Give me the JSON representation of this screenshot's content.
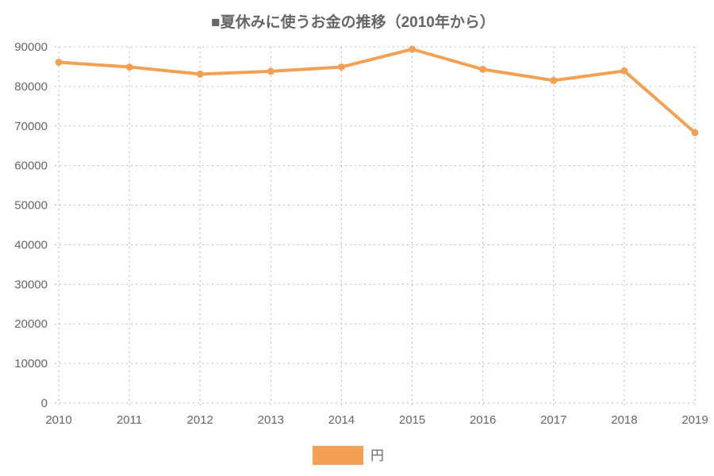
{
  "chart_data": {
    "type": "line",
    "title": "■夏休みに使うお金の推移（2010年から）",
    "xlabel": "",
    "ylabel": "",
    "categories": [
      "2010",
      "2011",
      "2012",
      "2013",
      "2014",
      "2015",
      "2016",
      "2017",
      "2018",
      "2019"
    ],
    "series": [
      {
        "name": "円",
        "color": "#f2a154",
        "values": [
          86100,
          84900,
          83100,
          83800,
          84900,
          89400,
          84300,
          81500,
          83900,
          68300
        ]
      }
    ],
    "ylim": [
      0,
      90000
    ],
    "yticks": [
      0,
      10000,
      20000,
      30000,
      40000,
      50000,
      60000,
      70000,
      80000,
      90000
    ],
    "grid": true,
    "legend_position": "bottom"
  }
}
